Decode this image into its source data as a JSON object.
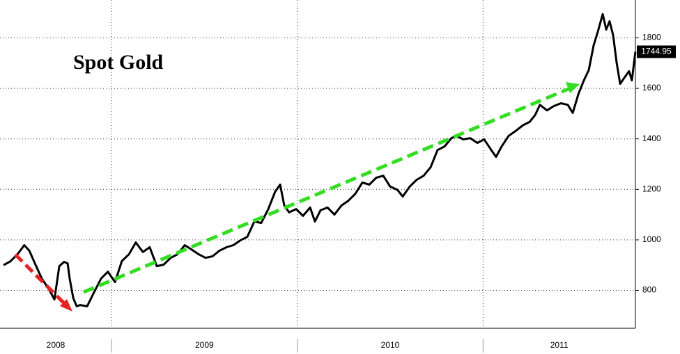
{
  "chart_data": {
    "type": "line",
    "title": "Spot Gold",
    "series": [
      {
        "name": "Spot Gold",
        "color": "#000000",
        "x": [
          2008.419,
          2008.456,
          2008.494,
          2008.531,
          2008.558,
          2008.588,
          2008.625,
          2008.663,
          2008.693,
          2008.719,
          2008.745,
          2008.764,
          2008.775,
          2008.794,
          2008.813,
          2008.831,
          2008.869,
          2008.906,
          2008.944,
          2008.981,
          2009.019,
          2009.056,
          2009.094,
          2009.131,
          2009.169,
          2009.206,
          2009.244,
          2009.281,
          2009.319,
          2009.356,
          2009.394,
          2009.431,
          2009.469,
          2009.506,
          2009.544,
          2009.581,
          2009.619,
          2009.656,
          2009.694,
          2009.731,
          2009.769,
          2009.806,
          2009.844,
          2009.881,
          2009.908,
          2009.93,
          2009.956,
          2009.994,
          2010.031,
          2010.069,
          2010.095,
          2010.125,
          2010.163,
          2010.2,
          2010.238,
          2010.275,
          2010.313,
          2010.35,
          2010.388,
          2010.425,
          2010.463,
          2010.5,
          2010.538,
          2010.568,
          2010.605,
          2010.643,
          2010.68,
          2010.718,
          2010.755,
          2010.793,
          2010.83,
          2010.856,
          2010.894,
          2010.931,
          2010.969,
          2011.006,
          2011.044,
          2011.07,
          2011.1,
          2011.138,
          2011.175,
          2011.213,
          2011.25,
          2011.28,
          2011.306,
          2011.344,
          2011.381,
          2011.419,
          2011.456,
          2011.483,
          2011.513,
          2011.543,
          2011.569,
          2011.595,
          2011.618,
          2011.644,
          2011.663,
          2011.681,
          2011.7,
          2011.719,
          2011.738,
          2011.764,
          2011.786,
          2011.801,
          2011.82
        ],
        "values": [
          900,
          915,
          943,
          979,
          957,
          907,
          847,
          805,
          764,
          896,
          913,
          907,
          847,
          770,
          737,
          742,
          737,
          792,
          847,
          874,
          833,
          916,
          943,
          990,
          952,
          971,
          896,
          902,
          929,
          943,
          979,
          962,
          943,
          929,
          935,
          957,
          971,
          979,
          998,
          1012,
          1073,
          1067,
          1122,
          1191,
          1219,
          1136,
          1109,
          1122,
          1095,
          1128,
          1073,
          1117,
          1128,
          1100,
          1136,
          1155,
          1183,
          1227,
          1219,
          1246,
          1254,
          1211,
          1199,
          1172,
          1211,
          1238,
          1254,
          1288,
          1356,
          1370,
          1403,
          1412,
          1398,
          1403,
          1384,
          1398,
          1356,
          1329,
          1370,
          1412,
          1431,
          1453,
          1467,
          1494,
          1535,
          1513,
          1530,
          1541,
          1535,
          1503,
          1577,
          1632,
          1673,
          1770,
          1825,
          1894,
          1833,
          1866,
          1811,
          1701,
          1618,
          1646,
          1668,
          1632,
          1744.95
        ]
      }
    ],
    "xlim": [
      2008.4,
      2011.82
    ],
    "xticks": [
      2009,
      2010,
      2011
    ],
    "year_labels": [
      "2008",
      "2009",
      "2010",
      "2011"
    ],
    "ylim": [
      650,
      1950
    ],
    "yticks": [
      800,
      1000,
      1200,
      1400,
      1600,
      1800
    ],
    "grid": true
  }
}
